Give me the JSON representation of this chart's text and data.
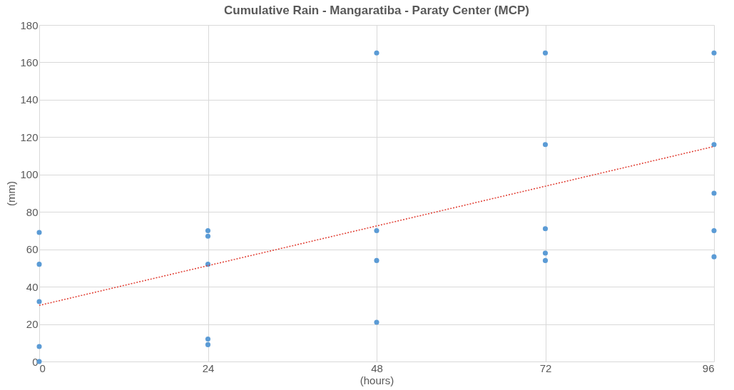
{
  "chart_data": {
    "type": "scatter",
    "title": "Cumulative Rain - Mangaratiba - Paraty Center (MCP)",
    "xlabel": "(hours)",
    "ylabel": "(mm)",
    "series": [
      {
        "type": "scatter",
        "color": "#5b9bd5",
        "marker": "circle",
        "x": [
          0,
          0,
          0,
          0,
          0,
          24,
          24,
          24,
          24,
          24,
          48,
          48,
          48,
          48,
          72,
          72,
          72,
          72,
          72,
          96,
          96,
          96,
          96,
          96
        ],
        "values": [
          69,
          52,
          32,
          8,
          0,
          70,
          67,
          52,
          12,
          9,
          165,
          70,
          54,
          21,
          165,
          116,
          71,
          58,
          54,
          165,
          116,
          90,
          70,
          56
        ]
      },
      {
        "type": "line",
        "color": "#e03c31",
        "line_style": "dotted",
        "x": [
          0,
          96
        ],
        "values": [
          30,
          115
        ]
      }
    ],
    "xlim": [
      0,
      96
    ],
    "xticks": [
      0,
      24,
      48,
      72,
      96
    ],
    "ylim": [
      0,
      180
    ],
    "yticks": [
      0,
      20,
      40,
      60,
      80,
      100,
      120,
      140,
      160,
      180
    ],
    "grid": true
  }
}
